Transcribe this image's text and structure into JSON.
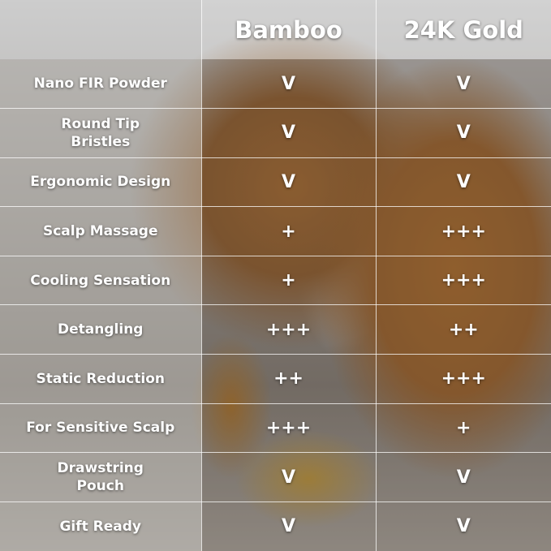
{
  "header": {
    "columns": [
      "",
      "Bamboo",
      "24K Gold"
    ]
  },
  "rows": [
    {
      "feature": "Nano FIR Powder",
      "bamboo": "V",
      "gold": "V"
    },
    {
      "feature": "Round Tip Bristles",
      "bamboo": "V",
      "gold": "V"
    },
    {
      "feature": "Ergonomic Design",
      "bamboo": "V",
      "gold": "V"
    },
    {
      "feature": "Scalp Massage",
      "bamboo": "+",
      "gold": "+++"
    },
    {
      "feature": "Cooling Sensation",
      "bamboo": "+",
      "gold": "+++"
    },
    {
      "feature": "Detangling",
      "bamboo": "+++",
      "gold": "++"
    },
    {
      "feature": "Static Reduction",
      "bamboo": "++",
      "gold": "+++"
    },
    {
      "feature": "For Sensitive Scalp",
      "bamboo": "+++",
      "gold": "+"
    },
    {
      "feature": "Drawstring Pouch",
      "bamboo": "V",
      "gold": "V"
    },
    {
      "feature": "Gift Ready",
      "bamboo": "V",
      "gold": "V"
    }
  ]
}
